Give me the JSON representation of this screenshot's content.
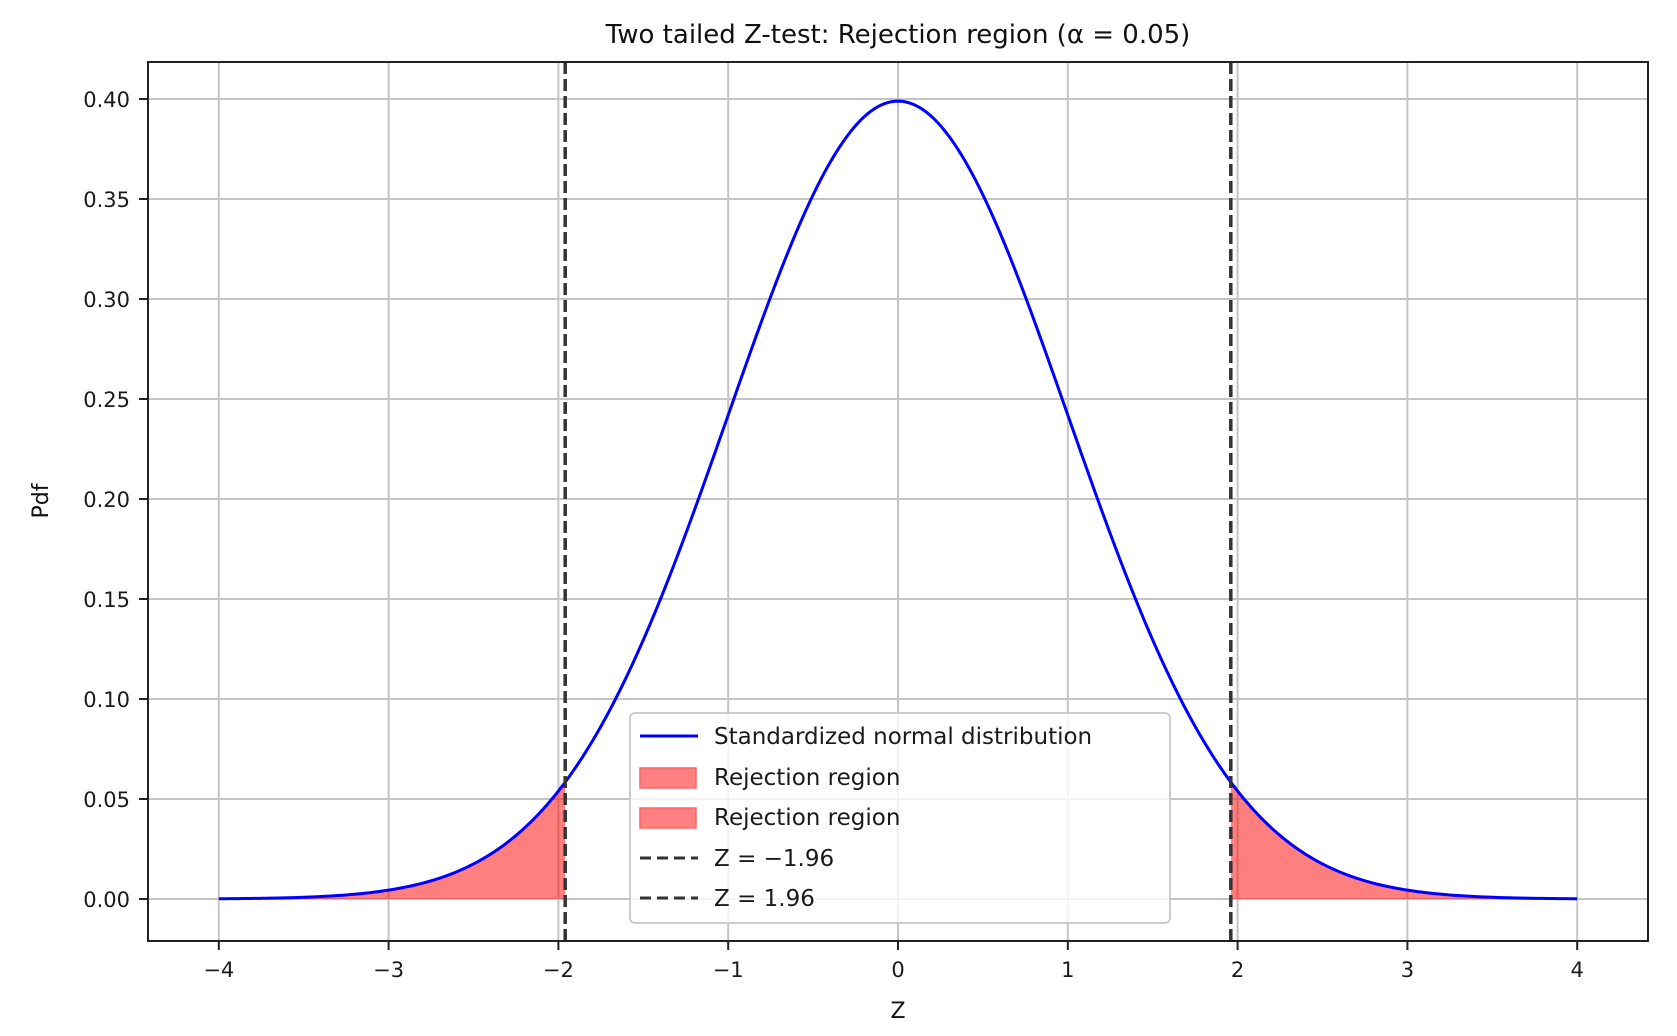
{
  "chart_data": {
    "type": "line",
    "title": "Two tailed Z-test: Rejection region (α = 0.05)",
    "xlabel": "Z",
    "ylabel": "Pdf",
    "xlim": [
      -4.4,
      4.4
    ],
    "ylim": [
      -0.02,
      0.42
    ],
    "grid": true,
    "x_ticks": [
      -4,
      -3,
      -2,
      -1,
      0,
      1,
      2,
      3,
      4
    ],
    "x_tick_labels": [
      "−4",
      "−3",
      "−2",
      "−1",
      "0",
      "1",
      "2",
      "3",
      "4"
    ],
    "y_ticks": [
      0.0,
      0.05,
      0.1,
      0.15,
      0.2,
      0.25,
      0.3,
      0.35,
      0.4
    ],
    "y_tick_labels": [
      "0.00",
      "0.05",
      "0.10",
      "0.15",
      "0.20",
      "0.25",
      "0.30",
      "0.35",
      "0.40"
    ],
    "series": [
      {
        "name": "Standardized normal distribution",
        "kind": "line",
        "color": "#0000ff",
        "function": "standard_normal_pdf",
        "x_range": [
          -4,
          4
        ],
        "x": [
          -4,
          -3.5,
          -3,
          -2.5,
          -2,
          -1.96,
          -1.5,
          -1,
          -0.5,
          0,
          0.5,
          1,
          1.5,
          1.96,
          2,
          2.5,
          3,
          3.5,
          4
        ],
        "values": [
          0.0001,
          0.0009,
          0.0044,
          0.0175,
          0.054,
          0.0584,
          0.1295,
          0.242,
          0.3521,
          0.3989,
          0.3521,
          0.242,
          0.1295,
          0.0584,
          0.054,
          0.0175,
          0.0044,
          0.0009,
          0.0001
        ]
      },
      {
        "name": "Rejection region",
        "kind": "area",
        "color": "#ff0000",
        "alpha": 0.5,
        "x_range": [
          -4,
          -1.96
        ]
      },
      {
        "name": "Rejection region",
        "kind": "area",
        "color": "#ff0000",
        "alpha": 0.5,
        "x_range": [
          1.96,
          4
        ]
      },
      {
        "name": "Z = −1.96",
        "kind": "vline",
        "x": -1.96,
        "color": "#333333",
        "style": "dashed"
      },
      {
        "name": "Z = 1.96",
        "kind": "vline",
        "x": 1.96,
        "color": "#333333",
        "style": "dashed"
      }
    ],
    "legend": {
      "position": "lower center",
      "entries": [
        {
          "label": "Standardized normal distribution",
          "marker": "line",
          "color": "#0000ff"
        },
        {
          "label": "Rejection region",
          "marker": "patch",
          "color": "#ff8080"
        },
        {
          "label": "Rejection region",
          "marker": "patch",
          "color": "#ff8080"
        },
        {
          "label": "Z = −1.96",
          "marker": "dashed",
          "color": "#333333"
        },
        {
          "label": "Z = 1.96",
          "marker": "dashed",
          "color": "#333333"
        }
      ]
    },
    "alpha_level": 0.05,
    "critical_values": [
      -1.96,
      1.96
    ]
  }
}
